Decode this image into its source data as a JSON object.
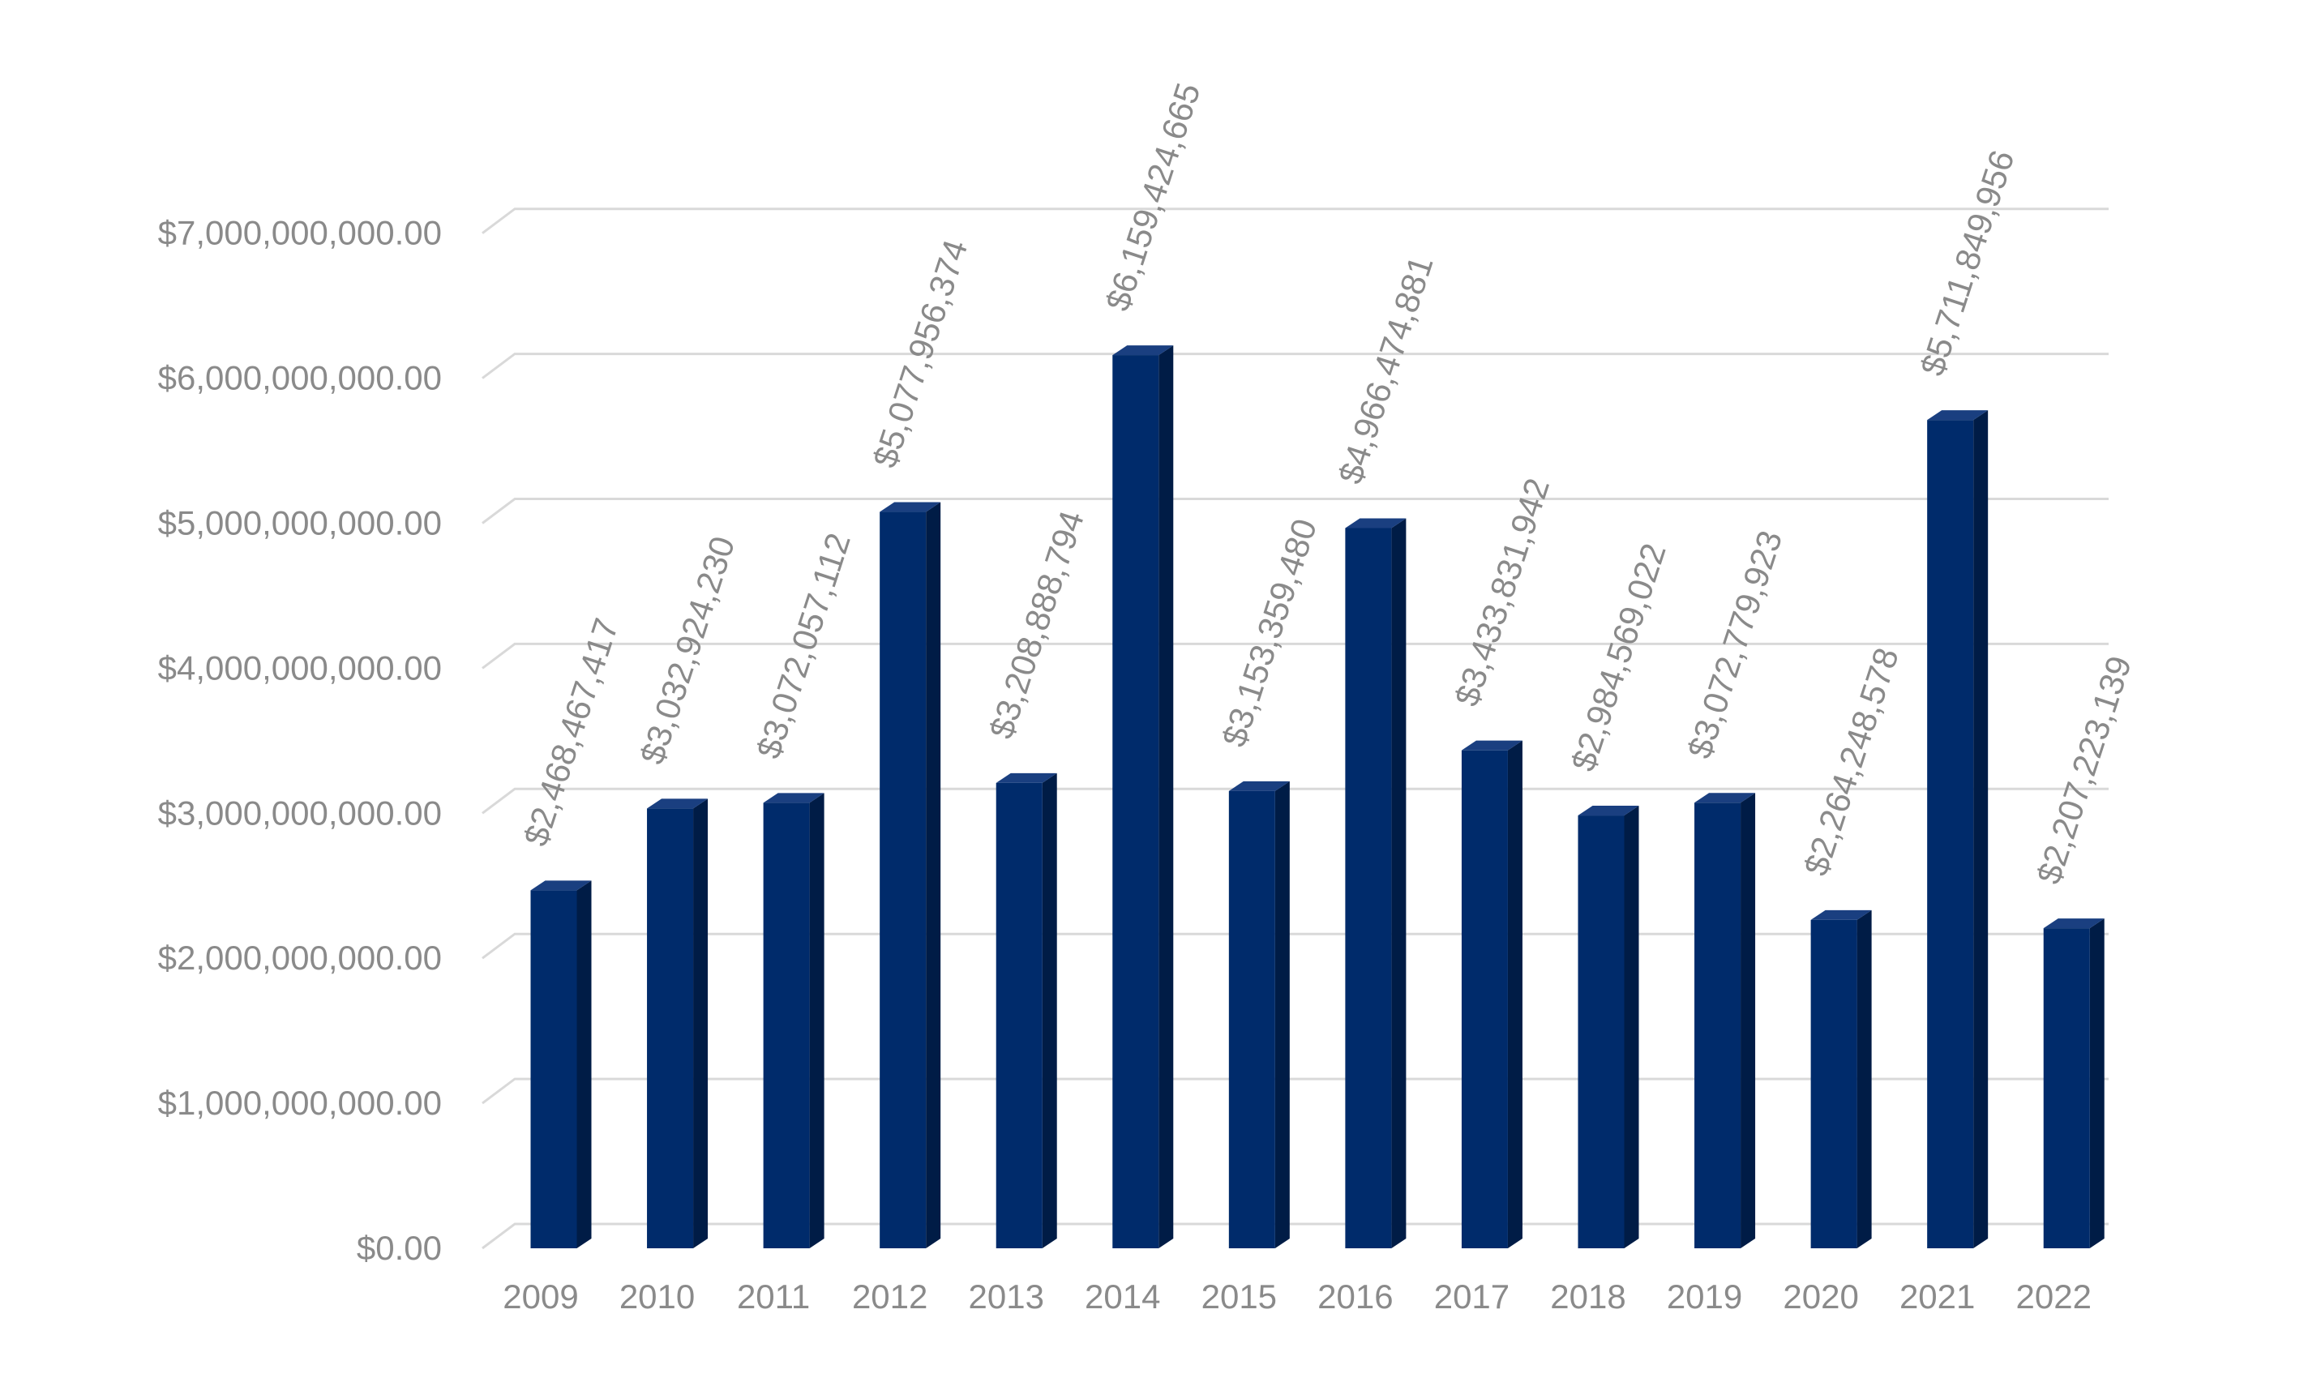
{
  "chart_data": {
    "type": "bar",
    "title": "",
    "xlabel": "",
    "ylabel": "",
    "categories": [
      "2009",
      "2010",
      "2011",
      "2012",
      "2013",
      "2014",
      "2015",
      "2016",
      "2017",
      "2018",
      "2019",
      "2020",
      "2021",
      "2022"
    ],
    "series": [
      {
        "values": [
          2468467417,
          3032924230,
          3072057112,
          5077956374,
          3208888794,
          6159424665,
          3153359480,
          4966474881,
          3433831942,
          2984569022,
          3072779923,
          2264248578,
          5711849956,
          2207223139
        ]
      }
    ],
    "data_labels": [
      "$2,468,467,417",
      "$3,032,924,230",
      "$3,072,057,112",
      "$5,077,956,374",
      "$3,208,888,794",
      "$6,159,424,665",
      "$3,153,359,480",
      "$4,966,474,881",
      "$3,433,831,942",
      "$2,984,569,022",
      "$3,072,779,923",
      "$2,264,248,578",
      "$5,711,849,956",
      "$2,207,223,139"
    ],
    "ylim": [
      0,
      7000000000
    ],
    "yticks": [
      0,
      1000000000,
      2000000000,
      3000000000,
      4000000000,
      5000000000,
      6000000000,
      7000000000
    ],
    "ytick_labels": [
      "$0.00",
      "$1,000,000,000.00",
      "$2,000,000,000.00",
      "$3,000,000,000.00",
      "$4,000,000,000.00",
      "$5,000,000,000.00",
      "$6,000,000,000.00",
      "$7,000,000,000.00"
    ],
    "grid": true,
    "legend": "none",
    "three_d": true,
    "colors": {
      "bar_front": "#002b6b",
      "bar_side": "#001c46",
      "bar_top": "#1a3f80",
      "grid": "#d9d9d9",
      "text": "#8a8a8a"
    }
  }
}
